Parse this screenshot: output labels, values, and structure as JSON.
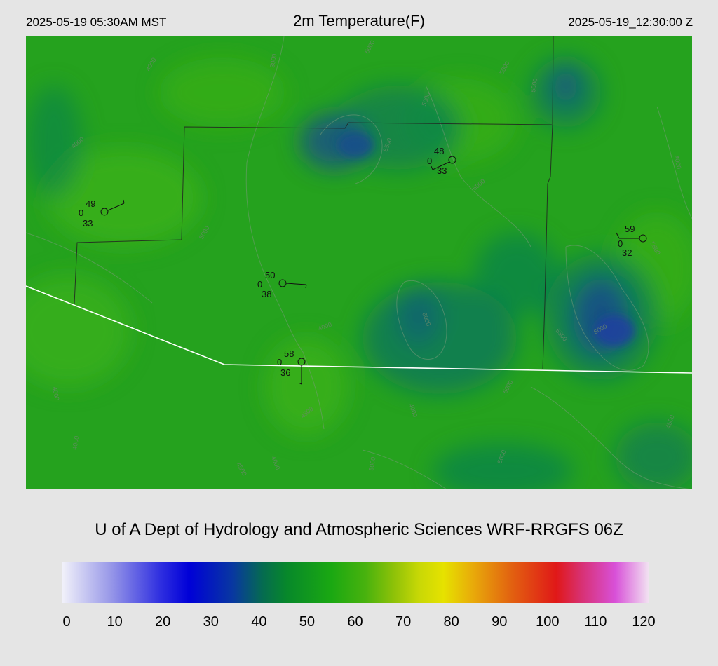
{
  "header": {
    "local_time": "2025-05-19 05:30AM MST",
    "title": "2m Temperature(F)",
    "utc_time": "2025-05-19_12:30:00 Z"
  },
  "credit": "U of A Dept of Hydrology and Atmospheric Sciences WRF-RRGFS 06Z",
  "colorbar": {
    "ticks": [
      "0",
      "10",
      "20",
      "30",
      "40",
      "50",
      "60",
      "70",
      "80",
      "90",
      "100",
      "110",
      "120"
    ],
    "range": [
      0,
      120
    ],
    "stops": [
      {
        "v": 0,
        "c": "#f2f2fa"
      },
      {
        "v": 10,
        "c": "#9898e8"
      },
      {
        "v": 20,
        "c": "#3030e0"
      },
      {
        "v": 26,
        "c": "#0000d8"
      },
      {
        "v": 35,
        "c": "#0838a0"
      },
      {
        "v": 41,
        "c": "#056b50"
      },
      {
        "v": 46,
        "c": "#07882a"
      },
      {
        "v": 55,
        "c": "#1aa812"
      },
      {
        "v": 62,
        "c": "#48b20e"
      },
      {
        "v": 68,
        "c": "#90c208"
      },
      {
        "v": 73,
        "c": "#c8d806"
      },
      {
        "v": 78,
        "c": "#e6e200"
      },
      {
        "v": 84,
        "c": "#e8aa0a"
      },
      {
        "v": 92,
        "c": "#e26010"
      },
      {
        "v": 101,
        "c": "#e01818"
      },
      {
        "v": 106,
        "c": "#d83070"
      },
      {
        "v": 113,
        "c": "#d850d8"
      },
      {
        "v": 120,
        "c": "#f2e4f2"
      }
    ]
  },
  "map": {
    "colors": {
      "base": "#25a21e",
      "warm": "#3cb219",
      "cool": "#0a7a55",
      "cold": "#154f8a",
      "boundary": "#222222",
      "border": "#ffffff",
      "contour": "#7a9a7a"
    },
    "contour_labels": [
      "3000",
      "5000",
      "5000",
      "5000",
      "4000",
      "5500",
      "5000",
      "5000",
      "5500",
      "6000",
      "6000",
      "5500",
      "4000",
      "5000",
      "4000",
      "4500",
      "4500",
      "4000",
      "5000",
      "5000",
      "4000",
      "5000",
      "4500",
      "4000",
      "4000",
      "4000"
    ],
    "stations": [
      {
        "temp": "49",
        "dew": "33",
        "speed": "0"
      },
      {
        "temp": "48",
        "dew": "33",
        "speed": "0"
      },
      {
        "temp": "59",
        "dew": "32",
        "speed": "0"
      },
      {
        "temp": "50",
        "dew": "38",
        "speed": "0"
      },
      {
        "temp": "58",
        "dew": "36",
        "speed": "0"
      }
    ]
  }
}
